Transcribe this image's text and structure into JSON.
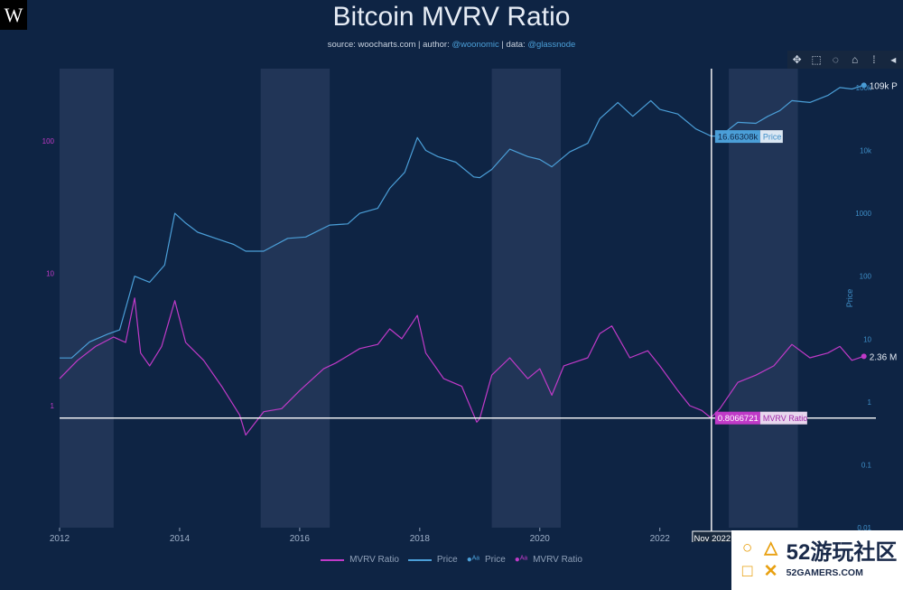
{
  "header": {
    "logo": "W",
    "title": "Bitcoin MVRV Ratio",
    "source_label": "source: ",
    "source_site": "woocharts.com",
    "author_label": " | author: ",
    "author": "@woonomic",
    "data_label": " | data: ",
    "data_source": "@glassnode"
  },
  "toolbar": {
    "icons": [
      "move-icon",
      "box-select-icon",
      "lasso-icon",
      "home-icon",
      "spike-lines-icon",
      "compare-icon"
    ]
  },
  "colors": {
    "background": "#0e2444",
    "price": "#4b9fd8",
    "mvrv": "#c03ac8",
    "band": "#24385a",
    "crosshair": "#ffffff"
  },
  "chart_data": {
    "type": "line",
    "title": "Bitcoin MVRV Ratio",
    "x_ticks": [
      "2012",
      "2014",
      "2016",
      "2018",
      "2020",
      "2022"
    ],
    "xlim": [
      2012.0,
      2025.6
    ],
    "shaded_periods": [
      [
        2012.0,
        2012.9
      ],
      [
        2015.35,
        2016.5
      ],
      [
        2019.2,
        2020.35
      ],
      [
        2023.15,
        2024.3
      ]
    ],
    "right_axis": {
      "label": "Price",
      "scale": "log",
      "ylim": [
        0.01,
        200000
      ],
      "ticks": [
        "0.01",
        "0.1",
        "1",
        "10",
        "100",
        "1000",
        "10k",
        "100k"
      ]
    },
    "left_axis": {
      "scale": "log",
      "ticks": [
        "1",
        "10",
        "100"
      ],
      "tick_values": [
        1,
        10,
        100
      ],
      "ylim": [
        0.12,
        350
      ]
    },
    "series": [
      {
        "name": "Price",
        "axis": "right",
        "x": [
          2012.0,
          2012.2,
          2012.5,
          2012.8,
          2013.0,
          2013.25,
          2013.5,
          2013.75,
          2013.92,
          2014.1,
          2014.3,
          2014.6,
          2014.9,
          2015.1,
          2015.4,
          2015.8,
          2016.1,
          2016.5,
          2016.8,
          2017.0,
          2017.3,
          2017.5,
          2017.75,
          2017.96,
          2018.1,
          2018.3,
          2018.6,
          2018.9,
          2019.0,
          2019.2,
          2019.5,
          2019.8,
          2020.0,
          2020.2,
          2020.5,
          2020.8,
          2021.0,
          2021.3,
          2021.55,
          2021.85,
          2022.0,
          2022.3,
          2022.6,
          2022.85,
          2023.0,
          2023.3,
          2023.6,
          2023.8,
          2024.0,
          2024.2,
          2024.5,
          2024.8,
          2025.0,
          2025.2,
          2025.4
        ],
        "values": [
          5,
          5,
          9,
          12,
          14,
          100,
          80,
          150,
          1000,
          700,
          500,
          400,
          320,
          250,
          250,
          400,
          420,
          650,
          680,
          1000,
          1200,
          2500,
          4500,
          16000,
          10000,
          8000,
          6500,
          3800,
          3700,
          5000,
          10500,
          8000,
          7200,
          5500,
          9500,
          13000,
          32000,
          58000,
          35000,
          62000,
          45000,
          38000,
          22000,
          17000,
          16700,
          28000,
          27000,
          35000,
          43000,
          62000,
          58000,
          75000,
          100000,
          95000,
          109000
        ]
      },
      {
        "name": "MVRV Ratio",
        "axis": "left",
        "x": [
          2012.0,
          2012.3,
          2012.6,
          2012.9,
          2013.1,
          2013.25,
          2013.35,
          2013.5,
          2013.7,
          2013.92,
          2014.1,
          2014.4,
          2014.7,
          2015.0,
          2015.1,
          2015.4,
          2015.7,
          2016.0,
          2016.4,
          2016.6,
          2017.0,
          2017.3,
          2017.5,
          2017.7,
          2017.96,
          2018.1,
          2018.4,
          2018.7,
          2018.95,
          2019.0,
          2019.2,
          2019.5,
          2019.8,
          2020.0,
          2020.2,
          2020.4,
          2020.8,
          2021.0,
          2021.2,
          2021.5,
          2021.8,
          2022.0,
          2022.3,
          2022.5,
          2022.7,
          2022.85,
          2023.0,
          2023.3,
          2023.6,
          2023.9,
          2024.2,
          2024.5,
          2024.8,
          2025.0,
          2025.2,
          2025.4
        ],
        "values": [
          1.6,
          2.2,
          2.8,
          3.3,
          3.0,
          6.5,
          2.5,
          2.0,
          2.8,
          6.2,
          3.0,
          2.2,
          1.4,
          0.85,
          0.6,
          0.9,
          0.95,
          1.3,
          1.9,
          2.1,
          2.7,
          2.9,
          3.8,
          3.2,
          4.8,
          2.5,
          1.6,
          1.4,
          0.75,
          0.8,
          1.7,
          2.3,
          1.6,
          1.9,
          1.2,
          2.0,
          2.3,
          3.5,
          4.0,
          2.3,
          2.6,
          2.0,
          1.3,
          1.0,
          0.92,
          0.81,
          0.95,
          1.5,
          1.7,
          2.0,
          2.9,
          2.3,
          2.5,
          2.8,
          2.2,
          2.36
        ]
      }
    ],
    "end_labels": {
      "price": "109k P",
      "mvrv": "2.36 M"
    },
    "hover": {
      "x_label": "Nov 2022",
      "x_value": 2022.86,
      "price_value": "16.66308k",
      "price_name": "Price",
      "mvrv_value": "0.8066721",
      "mvrv_name": "MVRV Ratio",
      "price_y": 16663,
      "mvrv_y": 0.8067
    }
  },
  "legend": [
    {
      "label": "MVRV Ratio",
      "kind": "line",
      "color": "#c03ac8"
    },
    {
      "label": "Price",
      "kind": "line",
      "color": "#4b9fd8"
    },
    {
      "label": "Price",
      "kind": "Aa",
      "color": "#4b9fd8"
    },
    {
      "label": "MVRV Ratio",
      "kind": "Aa",
      "color": "#c03ac8"
    }
  ],
  "watermark": {
    "brand": "52游玩社区",
    "domain": "52GAMERS.COM",
    "shapes": [
      "○",
      "△",
      "□",
      "✕"
    ]
  }
}
